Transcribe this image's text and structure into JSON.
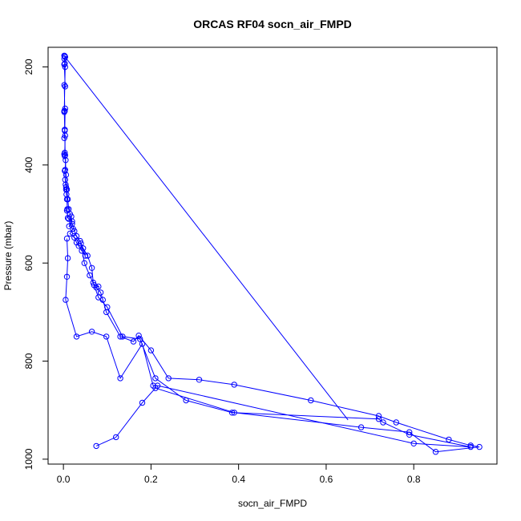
{
  "chart_data": {
    "type": "line",
    "title": "ORCAS RF04 socn_air_FMPD",
    "xlabel": "socn_air_FMPD",
    "ylabel": "Pressure (mbar)",
    "xlim": [
      -0.035,
      0.99
    ],
    "ylim": [
      1010,
      160
    ],
    "y_reversed": true,
    "grid": false,
    "x_ticks": [
      0.0,
      0.2,
      0.4,
      0.6,
      0.8
    ],
    "x_tick_labels": [
      "0.0",
      "0.2",
      "0.4",
      "0.6",
      "0.8"
    ],
    "y_ticks": [
      200,
      400,
      600,
      800,
      1000
    ],
    "y_tick_labels": [
      "200",
      "400",
      "600",
      "800",
      "1000"
    ],
    "color": "#0000ff",
    "marker": "open-circle",
    "series": [
      {
        "x": [
          0.002,
          0.004,
          0.002,
          0.003,
          0.002,
          0.004,
          0.002,
          0.003,
          0.002,
          0.004,
          0.003,
          0.002,
          0.004,
          0.003,
          0.002,
          0.003,
          0.005,
          0.004,
          0.003,
          0.004,
          0.005,
          0.006,
          0.006,
          0.007,
          0.008,
          0.009,
          0.008,
          0.01,
          0.012,
          0.02,
          0.013,
          0.022,
          0.015,
          0.025,
          0.03,
          0.035,
          0.042,
          0.05,
          0.04,
          0.048,
          0.06,
          0.07,
          0.08,
          0.075,
          0.085,
          0.09,
          0.098,
          0.13,
          0.16,
          0.172,
          0.2,
          0.24,
          0.31,
          0.39,
          0.565,
          0.72,
          0.76,
          0.88,
          0.93,
          0.95,
          0.85,
          0.79,
          0.68,
          0.39,
          0.21,
          0.18,
          0.12,
          0.075
        ],
        "y": [
          177,
          180,
          183,
          193,
          195,
          240,
          237,
          290,
          292,
          285,
          328,
          345,
          340,
          375,
          378,
          382,
          390,
          410,
          412,
          430,
          440,
          445,
          450,
          460,
          470,
          490,
          493,
          508,
          510,
          515,
          525,
          530,
          540,
          548,
          558,
          565,
          575,
          585,
          560,
          600,
          625,
          645,
          648,
          650,
          660,
          675,
          700,
          750,
          760,
          748,
          778,
          835,
          838,
          848,
          880,
          912,
          925,
          960,
          972,
          975,
          985,
          945,
          935,
          905,
          855,
          885,
          955,
          973
        ]
      },
      {
        "x": [
          0.003,
          0.004,
          0.002,
          0.003,
          0.004,
          0.006,
          0.008,
          0.01,
          0.012,
          0.015,
          0.018,
          0.02,
          0.025,
          0.03,
          0.038,
          0.045,
          0.055,
          0.065,
          0.068,
          0.08,
          0.1,
          0.135,
          0.175,
          0.21,
          0.28,
          0.385,
          0.72,
          0.73,
          0.79,
          0.93,
          0.8,
          0.215,
          0.205,
          0.18,
          0.13,
          0.098,
          0.065,
          0.03,
          0.005,
          0.008,
          0.01,
          0.008
        ],
        "y": [
          178,
          200,
          290,
          330,
          380,
          420,
          450,
          470,
          490,
          500,
          505,
          520,
          535,
          545,
          555,
          570,
          585,
          610,
          640,
          670,
          690,
          750,
          755,
          835,
          880,
          905,
          918,
          925,
          950,
          975,
          968,
          850,
          850,
          765,
          835,
          750,
          740,
          750,
          675,
          628,
          590,
          550
        ]
      },
      {
        "x": [
          0.004,
          0.65
        ],
        "y": [
          180,
          920
        ]
      }
    ]
  }
}
